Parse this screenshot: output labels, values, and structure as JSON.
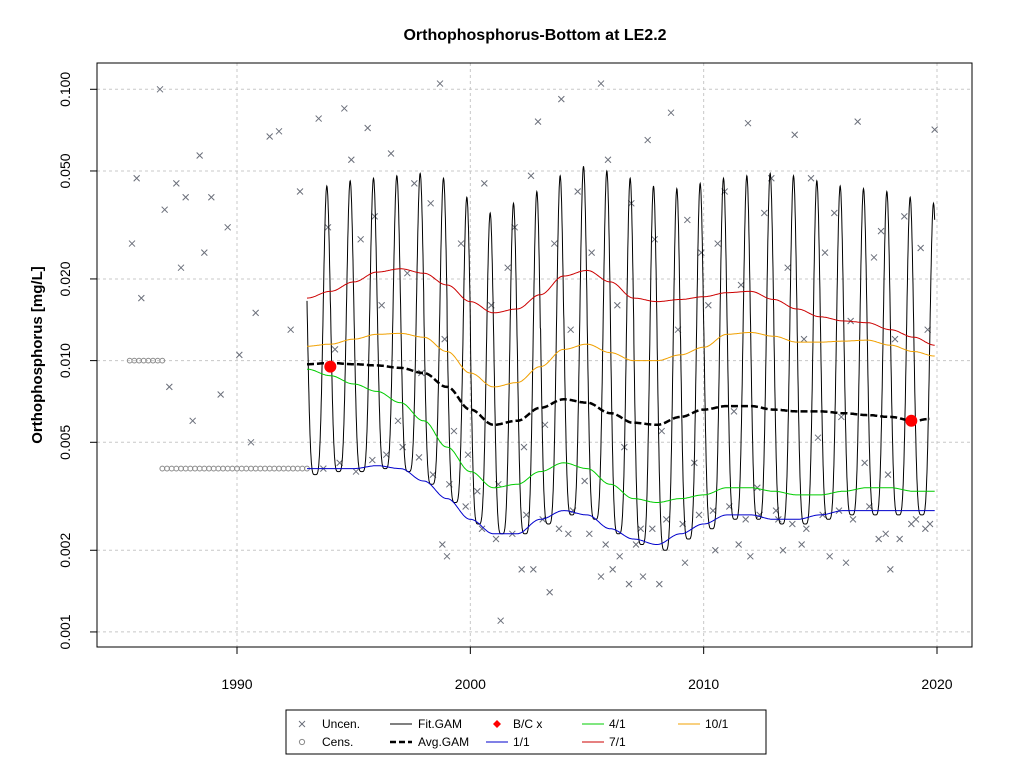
{
  "chart_data": {
    "type": "scatter",
    "title": "Orthophosphorus-Bottom at LE2.2",
    "xlabel": "",
    "ylabel": "Orthophosphorus [mg/L]",
    "y_scale": "log",
    "xlim": [
      1984,
      2021.5
    ],
    "ylim": [
      0.00088,
      0.125
    ],
    "x_ticks": [
      1990,
      2000,
      2010,
      2020
    ],
    "x_tick_labels": [
      "1990",
      "2000",
      "2010",
      "2020"
    ],
    "y_ticks": [
      0.001,
      0.002,
      0.005,
      0.01,
      0.02,
      0.05,
      0.1
    ],
    "y_tick_labels": [
      "0.001",
      "0.002",
      "0.005",
      "0.010",
      "0.020",
      "0.050",
      "0.100"
    ],
    "grid": true,
    "legend_position": "bottom",
    "colors": {
      "uncensored": "#6b6f7a",
      "censored": "#8a8a8a",
      "fit_gam": "#000000",
      "avg_gam": "#000000",
      "bc_x": "#ff0000",
      "pct_1_1": "#0000cc",
      "pct_4_1": "#00cc00",
      "pct_7_1": "#cc0000",
      "pct_10_1": "#f0a000",
      "grid": "#c8c8c8"
    },
    "legend": {
      "uncensored": "Uncen.",
      "censored": "Cens.",
      "fit_gam": "Fit.GAM",
      "avg_gam": "Avg.GAM",
      "bc_x": "B/C x",
      "pct_1_1": "1/1",
      "pct_4_1": "4/1",
      "pct_7_1": "7/1",
      "pct_10_1": "10/1"
    },
    "bc_points": [
      {
        "x": 1994.0,
        "y": 0.0095
      },
      {
        "x": 2018.9,
        "y": 0.006
      }
    ],
    "censored_points": {
      "x": [
        1985.4,
        1985.6,
        1985.8,
        1986.0,
        1986.2,
        1986.4,
        1986.6,
        1986.8,
        1986.8,
        1987.0,
        1987.2,
        1987.4,
        1987.6,
        1987.8,
        1988.0,
        1988.2,
        1988.4,
        1988.6,
        1988.8,
        1989.0,
        1989.2,
        1989.4,
        1989.6,
        1989.8,
        1990.0,
        1990.2,
        1990.4,
        1990.6,
        1990.8,
        1991.0,
        1991.2,
        1991.4,
        1991.6,
        1991.8,
        1992.0,
        1992.2,
        1992.4,
        1992.6,
        1992.8,
        1993.0
      ],
      "y": [
        0.01,
        0.01,
        0.01,
        0.01,
        0.01,
        0.01,
        0.01,
        0.01,
        0.004,
        0.004,
        0.004,
        0.004,
        0.004,
        0.004,
        0.004,
        0.004,
        0.004,
        0.004,
        0.004,
        0.004,
        0.004,
        0.004,
        0.004,
        0.004,
        0.004,
        0.004,
        0.004,
        0.004,
        0.004,
        0.004,
        0.004,
        0.004,
        0.004,
        0.004,
        0.004,
        0.004,
        0.004,
        0.004,
        0.004,
        0.004
      ]
    },
    "uncensored_points": {
      "x": [
        1985.5,
        1985.7,
        1985.9,
        1986.7,
        1986.9,
        1987.1,
        1987.4,
        1987.6,
        1987.8,
        1988.1,
        1988.4,
        1988.6,
        1988.9,
        1989.3,
        1989.6,
        1990.1,
        1990.6,
        1990.8,
        1991.4,
        1991.8,
        1992.3,
        1992.7,
        1993.5,
        1993.9,
        1994.2,
        1994.6,
        1994.9,
        1995.3,
        1995.6,
        1995.9,
        1996.2,
        1996.6,
        1996.9,
        1997.3,
        1997.6,
        1997.9,
        1998.3,
        1998.7,
        1998.9,
        1999.3,
        1999.6,
        1999.9,
        2000.3,
        2000.6,
        2000.9,
        2001.2,
        2001.6,
        2001.9,
        2002.3,
        2002.6,
        2002.9,
        2003.2,
        2003.6,
        2003.9,
        2004.3,
        2004.6,
        2004.9,
        2005.2,
        2005.6,
        2005.9,
        2006.3,
        2006.6,
        2006.9,
        2007.3,
        2007.6,
        2007.9,
        2008.2,
        2008.6,
        2008.9,
        2009.3,
        2009.6,
        2009.9,
        2010.2,
        2010.6,
        2010.9,
        2011.3,
        2011.6,
        2011.9,
        2012.3,
        2012.6,
        2012.9,
        2013.2,
        2013.6,
        2013.9,
        2014.3,
        2014.6,
        2014.9,
        2015.2,
        2015.6,
        2015.9,
        2016.3,
        2016.6,
        2016.9,
        2017.3,
        2017.6,
        2017.9,
        2018.2,
        2018.6,
        2018.9,
        2019.3,
        2019.6,
        2019.9,
        1993.7,
        1994.4,
        1995.1,
        1995.8,
        1996.4,
        1997.1,
        1997.8,
        1998.4,
        1999.1,
        1999.8,
        2000.5,
        2001.1,
        2001.8,
        2002.4,
        2003.1,
        2003.8,
        2004.4,
        2005.1,
        2005.8,
        2006.4,
        2007.1,
        2007.8,
        2008.4,
        2009.1,
        2009.8,
        2010.4,
        2011.1,
        2011.8,
        2012.4,
        2013.1,
        2013.8,
        2014.4,
        2015.1,
        2015.8,
        2016.4,
        2017.1,
        2017.8,
        2018.4,
        2019.1,
        2019.7,
        1998.8,
        2002.2,
        2003.4,
        2005.6,
        2006.8,
        2008.1,
        2010.5,
        2012.0,
        2014.2,
        2016.1,
        2017.5,
        2019.5,
        1999.0,
        2001.3,
        2002.7,
        2004.2,
        2006.1,
        2007.4,
        2009.2,
        2011.5,
        2013.4,
        2015.4,
        2018.0
      ],
      "y": [
        0.027,
        0.047,
        0.017,
        0.1,
        0.036,
        0.008,
        0.045,
        0.022,
        0.04,
        0.006,
        0.057,
        0.025,
        0.04,
        0.0075,
        0.031,
        0.0105,
        0.005,
        0.015,
        0.067,
        0.07,
        0.013,
        0.042,
        0.078,
        0.031,
        0.011,
        0.085,
        0.055,
        0.028,
        0.072,
        0.034,
        0.016,
        0.058,
        0.006,
        0.021,
        0.045,
        0.009,
        0.038,
        0.105,
        0.012,
        0.0055,
        0.027,
        0.0045,
        0.0033,
        0.045,
        0.016,
        0.0035,
        0.022,
        0.031,
        0.0048,
        0.048,
        0.076,
        0.0058,
        0.027,
        0.092,
        0.013,
        0.042,
        0.0036,
        0.025,
        0.105,
        0.055,
        0.016,
        0.0048,
        0.038,
        0.0024,
        0.065,
        0.028,
        0.0055,
        0.082,
        0.013,
        0.033,
        0.0042,
        0.025,
        0.016,
        0.027,
        0.042,
        0.0065,
        0.019,
        0.075,
        0.0034,
        0.035,
        0.047,
        0.0026,
        0.022,
        0.068,
        0.012,
        0.047,
        0.0052,
        0.025,
        0.035,
        0.0062,
        0.014,
        0.076,
        0.0042,
        0.024,
        0.03,
        0.0038,
        0.012,
        0.034,
        0.0025,
        0.026,
        0.013,
        0.071,
        0.004,
        0.0042,
        0.0039,
        0.0043,
        0.0045,
        0.0048,
        0.0044,
        0.0038,
        0.0035,
        0.0029,
        0.0024,
        0.0022,
        0.0023,
        0.0027,
        0.0026,
        0.0024,
        0.0028,
        0.0023,
        0.0021,
        0.0019,
        0.0021,
        0.0024,
        0.0026,
        0.0025,
        0.0027,
        0.0028,
        0.0029,
        0.0026,
        0.0027,
        0.0028,
        0.0025,
        0.0024,
        0.0027,
        0.0028,
        0.0026,
        0.0029,
        0.0023,
        0.0022,
        0.0026,
        0.0025,
        0.0021,
        0.0017,
        0.0014,
        0.0016,
        0.0015,
        0.0015,
        0.002,
        0.0019,
        0.0021,
        0.0018,
        0.0022,
        0.0024,
        0.0019,
        0.0011,
        0.0017,
        0.0023,
        0.0017,
        0.0016,
        0.0018,
        0.0021,
        0.002,
        0.0019,
        0.0017
      ]
    },
    "series": [
      {
        "name": "Avg.GAM",
        "x": [
          1993,
          1994,
          1995,
          1996,
          1997,
          1998,
          1999,
          2000,
          2001,
          2002,
          2003,
          2004,
          2005,
          2006,
          2007,
          2008,
          2009,
          2010,
          2011,
          2012,
          2013,
          2014,
          2015,
          2016,
          2017,
          2018,
          2019,
          2019.7
        ],
        "y": [
          0.0097,
          0.0098,
          0.0097,
          0.0096,
          0.0094,
          0.009,
          0.008,
          0.0066,
          0.0058,
          0.006,
          0.0067,
          0.0072,
          0.007,
          0.0064,
          0.0059,
          0.0058,
          0.0062,
          0.0066,
          0.0068,
          0.0068,
          0.0066,
          0.0065,
          0.0065,
          0.0064,
          0.0063,
          0.0062,
          0.006,
          0.0061
        ]
      },
      {
        "name": "1/1",
        "x": [
          1993,
          1994,
          1995,
          1996,
          1997,
          1998,
          1999,
          2000,
          2001,
          2002,
          2003,
          2004,
          2005,
          2006,
          2007,
          2008,
          2009,
          2010,
          2011,
          2012,
          2013,
          2014,
          2015,
          2016,
          2017,
          2018,
          2019,
          2019.9
        ],
        "y": [
          0.004,
          0.004,
          0.004,
          0.0041,
          0.004,
          0.0036,
          0.0031,
          0.0026,
          0.0023,
          0.0023,
          0.0026,
          0.0028,
          0.0027,
          0.0024,
          0.0022,
          0.0021,
          0.0023,
          0.0025,
          0.0027,
          0.0027,
          0.0026,
          0.0026,
          0.0027,
          0.0028,
          0.0028,
          0.0028,
          0.0028,
          0.0028
        ]
      },
      {
        "name": "4/1",
        "x": [
          1993,
          1994,
          1995,
          1996,
          1997,
          1998,
          1999,
          2000,
          2001,
          2002,
          2003,
          2004,
          2005,
          2006,
          2007,
          2008,
          2009,
          2010,
          2011,
          2012,
          2013,
          2014,
          2015,
          2016,
          2017,
          2018,
          2019,
          2019.9
        ],
        "y": [
          0.0093,
          0.0088,
          0.0082,
          0.0077,
          0.007,
          0.006,
          0.0048,
          0.0039,
          0.0034,
          0.0035,
          0.0039,
          0.0042,
          0.004,
          0.0035,
          0.0031,
          0.003,
          0.0031,
          0.0032,
          0.0034,
          0.0034,
          0.0033,
          0.0032,
          0.0032,
          0.0033,
          0.0034,
          0.0034,
          0.0033,
          0.0033
        ]
      },
      {
        "name": "7/1",
        "x": [
          1993,
          1994,
          1995,
          1996,
          1997,
          1998,
          1999,
          2000,
          2001,
          2002,
          2003,
          2004,
          2005,
          2006,
          2007,
          2008,
          2009,
          2010,
          2011,
          2012,
          2013,
          2014,
          2015,
          2016,
          2017,
          2018,
          2019,
          2019.9
        ],
        "y": [
          0.017,
          0.018,
          0.0195,
          0.0212,
          0.0218,
          0.021,
          0.019,
          0.0165,
          0.015,
          0.0155,
          0.0175,
          0.0205,
          0.0215,
          0.0195,
          0.017,
          0.0165,
          0.0168,
          0.0172,
          0.0178,
          0.018,
          0.0168,
          0.0155,
          0.0145,
          0.014,
          0.0138,
          0.013,
          0.0122,
          0.0114
        ]
      },
      {
        "name": "10/1",
        "x": [
          1993,
          1994,
          1995,
          1996,
          1997,
          1998,
          1999,
          2000,
          2001,
          2002,
          2003,
          2004,
          2005,
          2006,
          2007,
          2008,
          2009,
          2010,
          2011,
          2012,
          2013,
          2014,
          2015,
          2016,
          2017,
          2018,
          2019,
          2019.9
        ],
        "y": [
          0.0113,
          0.0115,
          0.012,
          0.0125,
          0.0126,
          0.0122,
          0.0108,
          0.009,
          0.008,
          0.0083,
          0.0095,
          0.011,
          0.0115,
          0.0107,
          0.01,
          0.01,
          0.0105,
          0.0112,
          0.0125,
          0.0127,
          0.0123,
          0.0117,
          0.0117,
          0.0118,
          0.0119,
          0.0114,
          0.0108,
          0.0104
        ]
      }
    ],
    "fit_gam": {
      "name": "Fit.GAM",
      "x_start": 1993.0,
      "x_end": 2019.9,
      "period_years": 1.0,
      "annual_peaks": [
        0.044,
        0.046,
        0.047,
        0.048,
        0.049,
        0.047,
        0.04,
        0.035,
        0.038,
        0.042,
        0.048,
        0.052,
        0.05,
        0.047,
        0.044,
        0.043,
        0.045,
        0.047,
        0.048,
        0.049,
        0.048,
        0.046,
        0.044,
        0.043,
        0.042,
        0.04,
        0.038
      ],
      "annual_troughs": [
        0.0038,
        0.0039,
        0.0039,
        0.004,
        0.0039,
        0.0035,
        0.003,
        0.0025,
        0.0023,
        0.0023,
        0.0025,
        0.0027,
        0.0026,
        0.0023,
        0.0021,
        0.002,
        0.0022,
        0.0024,
        0.0026,
        0.0026,
        0.0025,
        0.0025,
        0.0026,
        0.0027,
        0.0027,
        0.0027,
        0.0027
      ]
    }
  }
}
